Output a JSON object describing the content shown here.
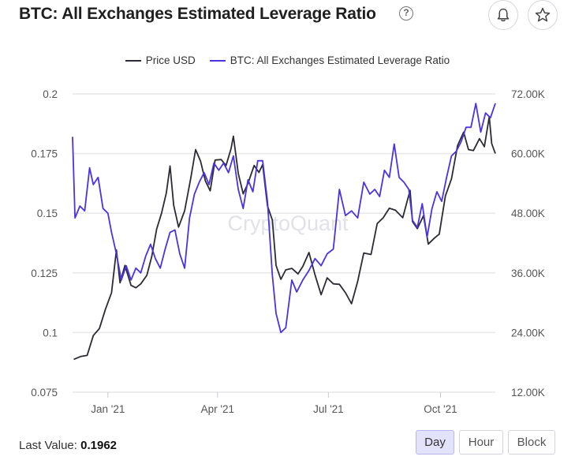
{
  "header": {
    "title": "BTC: All Exchanges Estimated Leverage Ratio",
    "help_glyph": "?"
  },
  "icons": {
    "bell": "bell-icon",
    "star": "star-icon"
  },
  "watermark": "CryptoQuant",
  "footer": {
    "last_value_label": "Last Value:",
    "last_value": "0.1962",
    "timeframes": [
      "Day",
      "Hour",
      "Block"
    ],
    "active_timeframe": "Day"
  },
  "colors": {
    "price": "#2b2b33",
    "leverage": "#4a33e0",
    "grid": "#e7e7ec",
    "active_button": "#e3e2fb"
  },
  "chart_data": {
    "type": "line",
    "title": "BTC: All Exchanges Estimated Leverage Ratio",
    "legend_position": "top-center",
    "grid": true,
    "x_ticks": [
      "Jan '21",
      "Apr '21",
      "Jul '21",
      "Oct '21"
    ],
    "x_range": [
      "2020-12-03",
      "2021-11-15"
    ],
    "y_left": {
      "ticks": [
        "0.075",
        "0.1",
        "0.125",
        "0.15",
        "0.175",
        "0.2"
      ],
      "range": [
        0.075,
        0.2
      ]
    },
    "y_right": {
      "ticks": [
        "12.00K",
        "24.00K",
        "36.00K",
        "48.00K",
        "60.00K",
        "72.00K"
      ],
      "range": [
        12000,
        72000
      ]
    },
    "series": [
      {
        "name": "Price USD",
        "axis": "right",
        "x": [
          "2020-12-04",
          "2020-12-10",
          "2020-12-15",
          "2020-12-20",
          "2020-12-25",
          "2020-12-30",
          "2021-01-04",
          "2021-01-08",
          "2021-01-11",
          "2021-01-15",
          "2021-01-20",
          "2021-01-24",
          "2021-01-28",
          "2021-02-02",
          "2021-02-06",
          "2021-02-10",
          "2021-02-14",
          "2021-02-18",
          "2021-02-21",
          "2021-02-24",
          "2021-02-28",
          "2021-03-05",
          "2021-03-10",
          "2021-03-14",
          "2021-03-18",
          "2021-03-22",
          "2021-03-26",
          "2021-03-30",
          "2021-04-04",
          "2021-04-08",
          "2021-04-12",
          "2021-04-14",
          "2021-04-18",
          "2021-04-22",
          "2021-04-26",
          "2021-05-01",
          "2021-05-05",
          "2021-05-08",
          "2021-05-12",
          "2021-05-16",
          "2021-05-19",
          "2021-05-23",
          "2021-05-27",
          "2021-06-01",
          "2021-06-06",
          "2021-06-10",
          "2021-06-15",
          "2021-06-20",
          "2021-06-25",
          "2021-06-30",
          "2021-07-05",
          "2021-07-10",
          "2021-07-15",
          "2021-07-20",
          "2021-07-25",
          "2021-07-30",
          "2021-08-05",
          "2021-08-10",
          "2021-08-15",
          "2021-08-20",
          "2021-08-25",
          "2021-08-31",
          "2021-09-06",
          "2021-09-08",
          "2021-09-12",
          "2021-09-17",
          "2021-09-21",
          "2021-09-26",
          "2021-09-30",
          "2021-10-05",
          "2021-10-10",
          "2021-10-15",
          "2021-10-20",
          "2021-10-24",
          "2021-10-28",
          "2021-11-02",
          "2021-11-06",
          "2021-11-10",
          "2021-11-12",
          "2021-11-15"
        ],
        "values": [
          18600,
          19200,
          19400,
          23400,
          24800,
          28700,
          32000,
          40600,
          34000,
          37500,
          33500,
          33000,
          33800,
          35500,
          39300,
          44800,
          48000,
          52100,
          57500,
          49600,
          45200,
          48500,
          55000,
          60800,
          58500,
          54500,
          52500,
          58700,
          58800,
          57600,
          60900,
          63500,
          56000,
          51900,
          54000,
          57600,
          56200,
          57800,
          49500,
          46600,
          37500,
          34700,
          36600,
          36900,
          35800,
          37300,
          40100,
          35600,
          31600,
          35000,
          33800,
          33700,
          32000,
          29800,
          34300,
          40000,
          39700,
          45900,
          47100,
          49000,
          48600,
          47100,
          52600,
          46300,
          44900,
          47500,
          41800,
          43000,
          43800,
          51500,
          54900,
          61600,
          64300,
          60800,
          60600,
          63000,
          61400,
          67400,
          62000,
          60000
        ]
      },
      {
        "name": "BTC: All Exchanges Estimated Leverage Ratio",
        "axis": "left",
        "x": [
          "2020-12-03",
          "2020-12-05",
          "2020-12-09",
          "2020-12-13",
          "2020-12-17",
          "2020-12-20",
          "2020-12-24",
          "2020-12-28",
          "2021-01-01",
          "2021-01-04",
          "2021-01-08",
          "2021-01-12",
          "2021-01-16",
          "2021-01-20",
          "2021-01-24",
          "2021-01-28",
          "2021-02-01",
          "2021-02-05",
          "2021-02-09",
          "2021-02-13",
          "2021-02-17",
          "2021-02-21",
          "2021-02-25",
          "2021-03-01",
          "2021-03-05",
          "2021-03-09",
          "2021-03-13",
          "2021-03-17",
          "2021-03-21",
          "2021-03-25",
          "2021-03-29",
          "2021-04-02",
          "2021-04-06",
          "2021-04-10",
          "2021-04-14",
          "2021-04-18",
          "2021-04-22",
          "2021-04-26",
          "2021-04-30",
          "2021-05-04",
          "2021-05-08",
          "2021-05-12",
          "2021-05-16",
          "2021-05-19",
          "2021-05-23",
          "2021-05-27",
          "2021-06-01",
          "2021-06-05",
          "2021-06-10",
          "2021-06-15",
          "2021-06-20",
          "2021-06-25",
          "2021-06-30",
          "2021-07-05",
          "2021-07-10",
          "2021-07-15",
          "2021-07-20",
          "2021-07-25",
          "2021-07-30",
          "2021-08-04",
          "2021-08-08",
          "2021-08-12",
          "2021-08-16",
          "2021-08-20",
          "2021-08-24",
          "2021-08-28",
          "2021-09-01",
          "2021-09-05",
          "2021-09-08",
          "2021-09-12",
          "2021-09-16",
          "2021-09-20",
          "2021-09-24",
          "2021-09-28",
          "2021-10-02",
          "2021-10-06",
          "2021-10-10",
          "2021-10-14",
          "2021-10-18",
          "2021-10-22",
          "2021-10-26",
          "2021-10-30",
          "2021-11-03",
          "2021-11-07",
          "2021-11-11",
          "2021-11-15"
        ],
        "values": [
          0.182,
          0.148,
          0.153,
          0.151,
          0.169,
          0.162,
          0.165,
          0.152,
          0.15,
          0.142,
          0.133,
          0.122,
          0.128,
          0.122,
          0.127,
          0.125,
          0.132,
          0.137,
          0.131,
          0.127,
          0.135,
          0.142,
          0.143,
          0.133,
          0.127,
          0.148,
          0.158,
          0.163,
          0.167,
          0.162,
          0.171,
          0.168,
          0.171,
          0.167,
          0.174,
          0.16,
          0.152,
          0.164,
          0.159,
          0.172,
          0.172,
          0.155,
          0.124,
          0.108,
          0.1,
          0.102,
          0.122,
          0.117,
          0.122,
          0.126,
          0.131,
          0.128,
          0.133,
          0.135,
          0.16,
          0.149,
          0.151,
          0.148,
          0.163,
          0.158,
          0.16,
          0.157,
          0.168,
          0.165,
          0.179,
          0.165,
          0.163,
          0.16,
          0.147,
          0.144,
          0.154,
          0.14,
          0.152,
          0.159,
          0.155,
          0.165,
          0.174,
          0.176,
          0.18,
          0.186,
          0.186,
          0.196,
          0.184,
          0.192,
          0.19,
          0.196
        ]
      }
    ]
  }
}
